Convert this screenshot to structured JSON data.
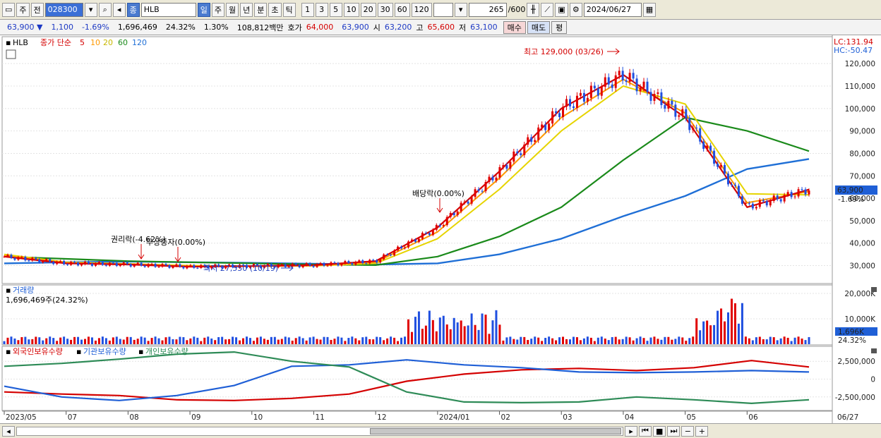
{
  "toolbar": {
    "type1": "주",
    "type2": "전",
    "code": "028300",
    "name_icon": "종",
    "name": "HLB",
    "periods": [
      "일",
      "주",
      "월",
      "년",
      "분",
      "초",
      "틱"
    ],
    "active_period": "일",
    "intervals": [
      "1",
      "3",
      "5",
      "10",
      "20",
      "30",
      "60",
      "120"
    ],
    "count": "265",
    "max_count": "/600",
    "date": "2024/06/27"
  },
  "quote": {
    "price": "63,900 ▼",
    "change": "1,100",
    "change_pct": "-1.69%",
    "volume": "1,696,469",
    "turnover_pct": "24.32%",
    "ratio": "1.30%",
    "amount": "108,812백만",
    "bid_label": "호가",
    "bid1": "64,000",
    "bid2": "63,900",
    "open_label": "시",
    "open": "63,200",
    "high_label": "고",
    "high": "65,600",
    "low_label": "저",
    "low": "63,100",
    "buy": "매수",
    "sell": "매도",
    "avg": "평"
  },
  "price_panel": {
    "name": "HLB",
    "legend_prefix": "종가 단순",
    "ma_labels": [
      "5",
      "10",
      "20",
      "60",
      "120"
    ],
    "ma_colors": [
      "#d40000",
      "#ff9900",
      "#e6d400",
      "#1a8a1a",
      "#1f6fd6"
    ],
    "lc": "LC:131.94",
    "hc": "HC:-50.47",
    "current_price": "63,900",
    "current_pct": "-1.69%",
    "annotations": {
      "high": "최고 129,000 (03/26)",
      "low": "최저 27,550 (10/19)",
      "rights": "권리락(-4.62%)",
      "free": "무상증자(0.00%)",
      "dividend": "배당락(0.00%)"
    }
  },
  "volume_panel": {
    "title": "거래량",
    "value": "1,696,469주(24.32%)",
    "current": "1,696K",
    "pct": "24.32%"
  },
  "holding_panel": {
    "legend": [
      "외국인보유수량",
      "기관보유수량",
      "개인보유수량"
    ],
    "colors": [
      "#d40000",
      "#1f5fd6",
      "#2e8b57"
    ]
  },
  "chart_data": [
    {
      "type": "line",
      "title": "HLB",
      "x": [
        "2023/05",
        "07",
        "08",
        "09",
        "10",
        "11",
        "12",
        "2024/01",
        "02",
        "03",
        "04",
        "05",
        "06",
        "06/27"
      ],
      "series": [
        {
          "name": "5",
          "values": [
            34000,
            31000,
            30500,
            29500,
            29800,
            30200,
            32000,
            47000,
            72000,
            100000,
            115000,
            96000,
            56000,
            63900
          ]
        },
        {
          "name": "10",
          "values": [
            34500,
            31200,
            30600,
            29700,
            29700,
            30000,
            31500,
            45000,
            69000,
            96000,
            113000,
            98000,
            58000,
            63000
          ]
        },
        {
          "name": "20",
          "values": [
            35000,
            31500,
            30800,
            30000,
            29700,
            29900,
            31000,
            42000,
            64000,
            90000,
            110000,
            102000,
            62000,
            61500
          ]
        },
        {
          "name": "60",
          "values": [
            34000,
            33000,
            32000,
            31500,
            31000,
            30500,
            30200,
            34000,
            43000,
            56000,
            77000,
            96000,
            90000,
            81000
          ]
        },
        {
          "name": "120",
          "values": [
            31000,
            31500,
            31800,
            31500,
            31200,
            30800,
            30500,
            31000,
            35000,
            42000,
            52000,
            61000,
            73000,
            77500
          ]
        }
      ],
      "ylim": [
        22000,
        132000
      ],
      "yticks": [
        30000,
        40000,
        50000,
        60000,
        70000,
        80000,
        90000,
        100000,
        110000,
        120000
      ],
      "ytick_labels": [
        "30,000",
        "40,000",
        "50,000",
        "60,000",
        "70,000",
        "80,000",
        "90,000",
        "100,000",
        "110,000",
        "120,000"
      ]
    },
    {
      "type": "bar",
      "title": "거래량",
      "yticks": [
        10000000,
        20000000
      ],
      "ytick_labels": [
        "10,000K",
        "20,000K"
      ],
      "ylim": [
        0,
        22500000
      ]
    },
    {
      "type": "line",
      "title": "보유수량",
      "series": [
        {
          "name": "외국인보유수량",
          "values": [
            -1800000,
            -2100000,
            -2300000,
            -2900000,
            -3000000,
            -2700000,
            -2100000,
            -300000,
            700000,
            1300000,
            1500000,
            1200000,
            1600000,
            2600000,
            1700000
          ]
        },
        {
          "name": "기관보유수량",
          "values": [
            -1000000,
            -2500000,
            -3000000,
            -2300000,
            -900000,
            1800000,
            2000000,
            2700000,
            2000000,
            1600000,
            1000000,
            900000,
            1000000,
            1200000,
            1000000
          ]
        },
        {
          "name": "개인보유수량",
          "values": [
            1800000,
            2200000,
            2800000,
            3500000,
            3800000,
            2500000,
            1700000,
            -1800000,
            -3200000,
            -3300000,
            -3200000,
            -2500000,
            -2900000,
            -3400000,
            -2900000
          ]
        }
      ],
      "yticks": [
        2500000,
        0,
        -2500000
      ],
      "ytick_labels": [
        "2,500,000",
        "0",
        "-2,500,000"
      ],
      "ylim": [
        -4300000,
        4300000
      ]
    }
  ]
}
